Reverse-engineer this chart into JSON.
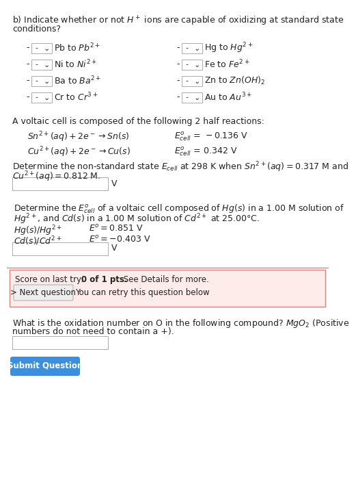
{
  "bg_color": "#ffffff",
  "text_color": "#222222",
  "title_line1": "b) Indicate whether or not $H^+$ ions are capable of oxidizing at standard state",
  "title_line2": "conditions?",
  "left_items": [
    "Pb to $Pb^{2+}$",
    "Ni to $Ni^{2+}$",
    "Ba to $Ba^{2+}$",
    "Cr to $Cr^{3+}$"
  ],
  "right_items": [
    "Hg to $Hg^{2+}$",
    "Fe to $Fe^{2+}$",
    "Zn to $Zn(OH)_2$",
    "Au to $Au^{3+}$"
  ],
  "voltaic_title": "A voltaic cell is composed of the following 2 half reactions:",
  "rxn1_lhs": "$Sn^{2+}(aq) + 2e^- \\rightarrow Sn(s)$",
  "rxn1_rhs": "$E^o_{cell}\\, = \\,-0.136$ V",
  "rxn2_lhs": "$Cu^{2+}(aq) + 2e^- \\rightarrow Cu(s)$",
  "rxn2_rhs": "$E^o_{cell}\\, = \\,0.342$ V",
  "nernst_line1": "Determine the non-standard state $E_{cell}$ at 298 K when $Sn^{2+}(aq) = 0.317$ M and",
  "nernst_line2": "$Cu^{2+}(aq) = 0.812$ M.",
  "ecell_line1": "Determine the $E^o_{cell}$ of a voltaic cell composed of $Hg(s)$ in a 1.00 M solution of",
  "ecell_line2": "$Hg^{2+}$, and $Cd(s)$ in a 1.00 M solution of $Cd^{2+}$ at 25.00°C.",
  "hg_label": "$Hg(s)/Hg^{2+}$",
  "hg_E": "$E^o = 0.851$ V",
  "cd_label": "$Cd(s)/Cd^{2+}$",
  "cd_E": "$E^o = -0.403$ V",
  "score_text": "Score on last try: ",
  "score_bold": "0 of 1 pts.",
  "score_rest": " See Details for more.",
  "next_btn_text": "> Next question",
  "retry_text": "You can retry this question below",
  "last_q_line1": "What is the oxidation number on O in the following compound? $MgO_2$ (Positive",
  "last_q_line2": "numbers do not need to contain a +).",
  "submit_btn_text": "Submit Question",
  "score_bg": "#fdecea",
  "score_border": "#e08080",
  "submit_btn_color": "#3d8fdb",
  "input_box_color": "#ffffff",
  "input_box_border": "#aaaaaa",
  "next_btn_bg": "#eeeeee",
  "next_btn_border": "#aaaaaa",
  "font_size": 9.0,
  "small_font": 8.5
}
